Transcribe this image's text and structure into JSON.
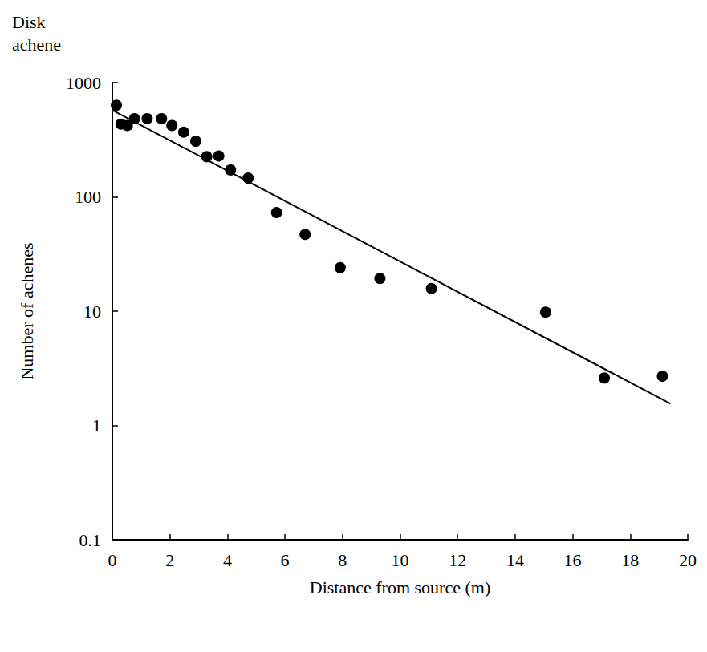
{
  "chart_data": {
    "type": "scatter",
    "title": "Disk achene",
    "x_label": "Distance from source (m)",
    "y_label": "Number of achenes",
    "log": "y",
    "grid": false,
    "xlim": [
      0,
      20
    ],
    "xticks": [
      0,
      2,
      4,
      6,
      8,
      10,
      12,
      14,
      16,
      18,
      20
    ],
    "ylim": [
      0.1,
      1000
    ],
    "yticks": [
      0.1,
      1,
      10,
      100,
      1000
    ],
    "series": [
      {
        "type": "scatter",
        "color": "#000000",
        "marker": "circle",
        "x": [
          0.14,
          0.3,
          0.52,
          0.77,
          1.21,
          1.71,
          2.07,
          2.48,
          2.9,
          3.28,
          3.7,
          4.11,
          4.72,
          5.71,
          6.7,
          7.92,
          9.3,
          11.09,
          15.06,
          17.1,
          19.12
        ],
        "values": [
          634,
          433,
          422,
          484,
          484,
          484,
          422,
          369,
          307,
          225,
          228,
          172,
          146,
          73,
          47,
          24,
          19.3,
          15.8,
          9.8,
          2.6,
          2.7
        ]
      },
      {
        "type": "line",
        "color": "#000000",
        "line_style": "solid",
        "x": [
          0,
          19.4
        ],
        "values": [
          574,
          1.55
        ]
      }
    ]
  }
}
